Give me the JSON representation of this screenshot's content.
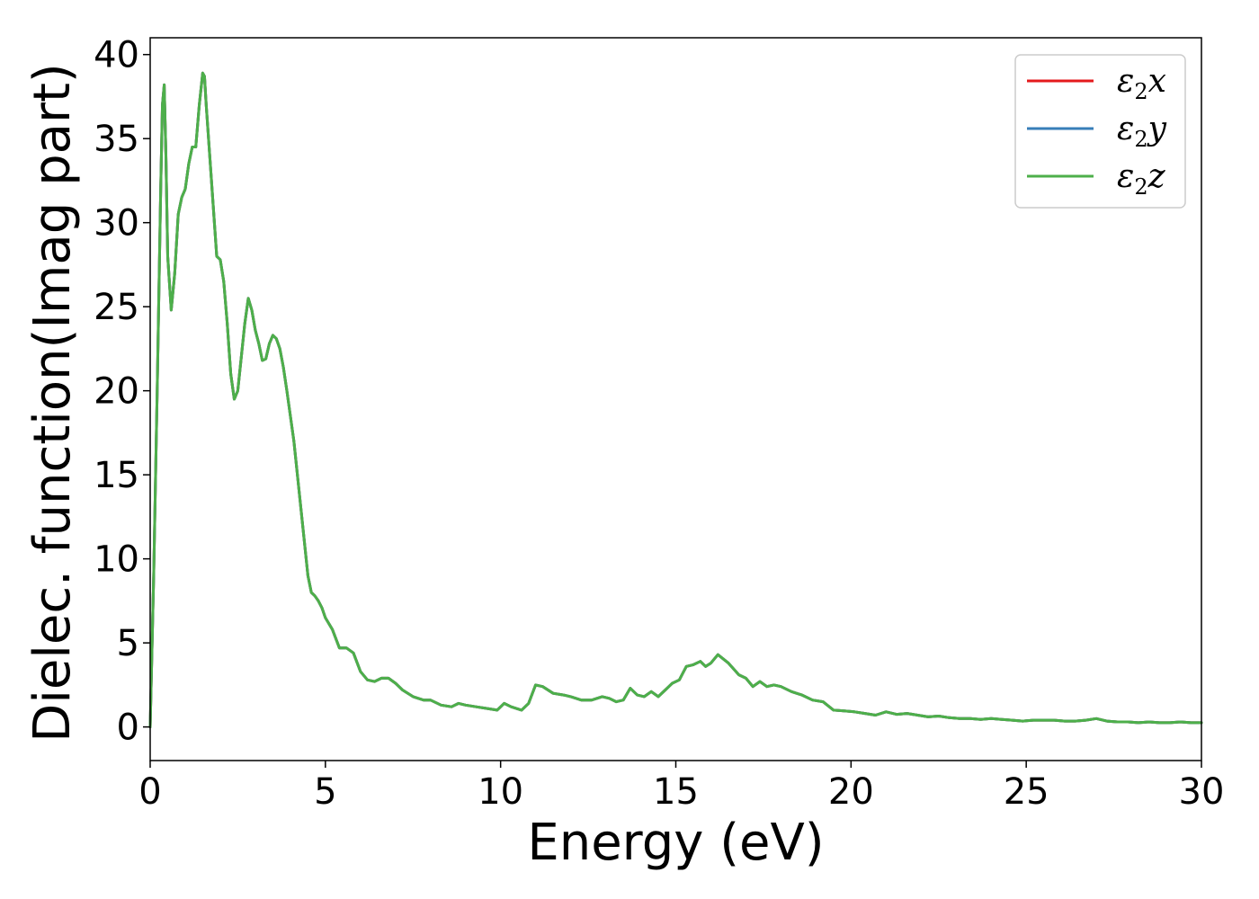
{
  "chart_data": {
    "type": "line",
    "xlabel": "Energy (eV)",
    "ylabel": "Dielec. function(Imag part)",
    "xlim": [
      0,
      30
    ],
    "ylim": [
      -2,
      41
    ],
    "x_ticks": [
      0,
      5,
      10,
      15,
      20,
      25,
      30
    ],
    "y_ticks": [
      0,
      5,
      10,
      15,
      20,
      25,
      30,
      35,
      40
    ],
    "grid": false,
    "legend_position": "top-right",
    "series": [
      {
        "name": "ε2x",
        "label_base": "ε",
        "label_sub": "2",
        "label_tail": "x",
        "color": "#e41a1c",
        "x": [
          0,
          0.1,
          0.2,
          0.3,
          0.35,
          0.4,
          0.45,
          0.5,
          0.6,
          0.7,
          0.8,
          0.9,
          1.0,
          1.1,
          1.2,
          1.3,
          1.4,
          1.5,
          1.55,
          1.6,
          1.7,
          1.8,
          1.9,
          2.0,
          2.1,
          2.2,
          2.3,
          2.4,
          2.5,
          2.6,
          2.7,
          2.8,
          2.9,
          3.0,
          3.1,
          3.2,
          3.3,
          3.4,
          3.5,
          3.6,
          3.7,
          3.8,
          3.9,
          4.0,
          4.1,
          4.2,
          4.3,
          4.4,
          4.5,
          4.6,
          4.7,
          4.8,
          4.9,
          5.0,
          5.2,
          5.4,
          5.6,
          5.8,
          6.0,
          6.2,
          6.4,
          6.6,
          6.8,
          7.0,
          7.2,
          7.5,
          7.8,
          8.0,
          8.3,
          8.6,
          8.8,
          9.0,
          9.3,
          9.6,
          9.9,
          10.1,
          10.3,
          10.6,
          10.8,
          11.0,
          11.2,
          11.5,
          11.8,
          12.0,
          12.3,
          12.6,
          12.9,
          13.1,
          13.3,
          13.5,
          13.7,
          13.9,
          14.1,
          14.3,
          14.5,
          14.7,
          14.9,
          15.1,
          15.3,
          15.5,
          15.7,
          15.85,
          16.0,
          16.2,
          16.5,
          16.8,
          17.0,
          17.2,
          17.4,
          17.6,
          17.8,
          18.0,
          18.3,
          18.6,
          18.9,
          19.2,
          19.5,
          19.8,
          20.1,
          20.4,
          20.7,
          21.0,
          21.3,
          21.6,
          21.9,
          22.2,
          22.5,
          22.8,
          23.1,
          23.4,
          23.7,
          24.0,
          24.3,
          24.6,
          24.9,
          25.2,
          25.5,
          25.8,
          26.1,
          26.4,
          26.7,
          27.0,
          27.3,
          27.6,
          27.9,
          28.2,
          28.5,
          28.8,
          29.1,
          29.4,
          29.7,
          30.0
        ],
        "y": [
          0,
          9,
          20,
          32,
          37,
          38.2,
          34,
          28,
          24.8,
          27,
          30.5,
          31.5,
          32,
          33.5,
          34.5,
          34.5,
          37,
          38.9,
          38.7,
          37,
          34,
          31,
          28,
          27.8,
          26.5,
          24,
          21,
          19.5,
          20,
          22,
          24,
          25.5,
          24.8,
          23.6,
          22.8,
          21.8,
          21.9,
          22.8,
          23.3,
          23.1,
          22.5,
          21.4,
          20,
          18.5,
          17,
          15,
          13,
          11,
          9,
          8,
          7.8,
          7.5,
          7.1,
          6.5,
          5.8,
          4.7,
          4.7,
          4.4,
          3.3,
          2.8,
          2.7,
          2.9,
          2.9,
          2.6,
          2.2,
          1.8,
          1.6,
          1.6,
          1.3,
          1.2,
          1.4,
          1.3,
          1.2,
          1.1,
          1.0,
          1.4,
          1.2,
          1.0,
          1.4,
          2.5,
          2.4,
          2.0,
          1.9,
          1.8,
          1.6,
          1.6,
          1.8,
          1.7,
          1.5,
          1.6,
          2.3,
          1.9,
          1.8,
          2.1,
          1.8,
          2.2,
          2.6,
          2.8,
          3.6,
          3.7,
          3.9,
          3.6,
          3.8,
          4.3,
          3.8,
          3.1,
          2.9,
          2.4,
          2.7,
          2.4,
          2.5,
          2.4,
          2.1,
          1.9,
          1.6,
          1.5,
          1.0,
          0.95,
          0.9,
          0.8,
          0.7,
          0.9,
          0.75,
          0.8,
          0.7,
          0.6,
          0.65,
          0.55,
          0.5,
          0.5,
          0.45,
          0.5,
          0.45,
          0.4,
          0.35,
          0.4,
          0.4,
          0.4,
          0.35,
          0.35,
          0.4,
          0.5,
          0.35,
          0.3,
          0.3,
          0.25,
          0.3,
          0.25,
          0.25,
          0.3,
          0.25,
          0.25
        ]
      },
      {
        "name": "ε2y",
        "label_base": "ε",
        "label_sub": "2",
        "label_tail": "y",
        "color": "#377eb8",
        "x": [
          0,
          0.1,
          0.2,
          0.3,
          0.35,
          0.4,
          0.45,
          0.5,
          0.6,
          0.7,
          0.8,
          0.9,
          1.0,
          1.1,
          1.2,
          1.3,
          1.4,
          1.5,
          1.55,
          1.6,
          1.7,
          1.8,
          1.9,
          2.0,
          2.1,
          2.2,
          2.3,
          2.4,
          2.5,
          2.6,
          2.7,
          2.8,
          2.9,
          3.0,
          3.1,
          3.2,
          3.3,
          3.4,
          3.5,
          3.6,
          3.7,
          3.8,
          3.9,
          4.0,
          4.1,
          4.2,
          4.3,
          4.4,
          4.5,
          4.6,
          4.7,
          4.8,
          4.9,
          5.0,
          5.2,
          5.4,
          5.6,
          5.8,
          6.0,
          6.2,
          6.4,
          6.6,
          6.8,
          7.0,
          7.2,
          7.5,
          7.8,
          8.0,
          8.3,
          8.6,
          8.8,
          9.0,
          9.3,
          9.6,
          9.9,
          10.1,
          10.3,
          10.6,
          10.8,
          11.0,
          11.2,
          11.5,
          11.8,
          12.0,
          12.3,
          12.6,
          12.9,
          13.1,
          13.3,
          13.5,
          13.7,
          13.9,
          14.1,
          14.3,
          14.5,
          14.7,
          14.9,
          15.1,
          15.3,
          15.5,
          15.7,
          15.85,
          16.0,
          16.2,
          16.5,
          16.8,
          17.0,
          17.2,
          17.4,
          17.6,
          17.8,
          18.0,
          18.3,
          18.6,
          18.9,
          19.2,
          19.5,
          19.8,
          20.1,
          20.4,
          20.7,
          21.0,
          21.3,
          21.6,
          21.9,
          22.2,
          22.5,
          22.8,
          23.1,
          23.4,
          23.7,
          24.0,
          24.3,
          24.6,
          24.9,
          25.2,
          25.5,
          25.8,
          26.1,
          26.4,
          26.7,
          27.0,
          27.3,
          27.6,
          27.9,
          28.2,
          28.5,
          28.8,
          29.1,
          29.4,
          29.7,
          30.0
        ],
        "y": [
          0,
          9,
          20,
          32,
          37,
          38.2,
          34,
          28,
          24.8,
          27,
          30.5,
          31.5,
          32,
          33.5,
          34.5,
          34.5,
          37,
          38.9,
          38.7,
          37,
          34,
          31,
          28,
          27.8,
          26.5,
          24,
          21,
          19.5,
          20,
          22,
          24,
          25.5,
          24.8,
          23.6,
          22.8,
          21.8,
          21.9,
          22.8,
          23.3,
          23.1,
          22.5,
          21.4,
          20,
          18.5,
          17,
          15,
          13,
          11,
          9,
          8,
          7.8,
          7.5,
          7.1,
          6.5,
          5.8,
          4.7,
          4.7,
          4.4,
          3.3,
          2.8,
          2.7,
          2.9,
          2.9,
          2.6,
          2.2,
          1.8,
          1.6,
          1.6,
          1.3,
          1.2,
          1.4,
          1.3,
          1.2,
          1.1,
          1.0,
          1.4,
          1.2,
          1.0,
          1.4,
          2.5,
          2.4,
          2.0,
          1.9,
          1.8,
          1.6,
          1.6,
          1.8,
          1.7,
          1.5,
          1.6,
          2.3,
          1.9,
          1.8,
          2.1,
          1.8,
          2.2,
          2.6,
          2.8,
          3.6,
          3.7,
          3.9,
          3.6,
          3.8,
          4.3,
          3.8,
          3.1,
          2.9,
          2.4,
          2.7,
          2.4,
          2.5,
          2.4,
          2.1,
          1.9,
          1.6,
          1.5,
          1.0,
          0.95,
          0.9,
          0.8,
          0.7,
          0.9,
          0.75,
          0.8,
          0.7,
          0.6,
          0.65,
          0.55,
          0.5,
          0.5,
          0.45,
          0.5,
          0.45,
          0.4,
          0.35,
          0.4,
          0.4,
          0.4,
          0.35,
          0.35,
          0.4,
          0.5,
          0.35,
          0.3,
          0.3,
          0.25,
          0.3,
          0.25,
          0.25,
          0.3,
          0.25,
          0.25
        ]
      },
      {
        "name": "ε2z",
        "label_base": "ε",
        "label_sub": "2",
        "label_tail": "z",
        "color": "#4daf4a",
        "x": [
          0,
          0.1,
          0.2,
          0.3,
          0.35,
          0.4,
          0.45,
          0.5,
          0.6,
          0.7,
          0.8,
          0.9,
          1.0,
          1.1,
          1.2,
          1.3,
          1.4,
          1.5,
          1.55,
          1.6,
          1.7,
          1.8,
          1.9,
          2.0,
          2.1,
          2.2,
          2.3,
          2.4,
          2.5,
          2.6,
          2.7,
          2.8,
          2.9,
          3.0,
          3.1,
          3.2,
          3.3,
          3.4,
          3.5,
          3.6,
          3.7,
          3.8,
          3.9,
          4.0,
          4.1,
          4.2,
          4.3,
          4.4,
          4.5,
          4.6,
          4.7,
          4.8,
          4.9,
          5.0,
          5.2,
          5.4,
          5.6,
          5.8,
          6.0,
          6.2,
          6.4,
          6.6,
          6.8,
          7.0,
          7.2,
          7.5,
          7.8,
          8.0,
          8.3,
          8.6,
          8.8,
          9.0,
          9.3,
          9.6,
          9.9,
          10.1,
          10.3,
          10.6,
          10.8,
          11.0,
          11.2,
          11.5,
          11.8,
          12.0,
          12.3,
          12.6,
          12.9,
          13.1,
          13.3,
          13.5,
          13.7,
          13.9,
          14.1,
          14.3,
          14.5,
          14.7,
          14.9,
          15.1,
          15.3,
          15.5,
          15.7,
          15.85,
          16.0,
          16.2,
          16.5,
          16.8,
          17.0,
          17.2,
          17.4,
          17.6,
          17.8,
          18.0,
          18.3,
          18.6,
          18.9,
          19.2,
          19.5,
          19.8,
          20.1,
          20.4,
          20.7,
          21.0,
          21.3,
          21.6,
          21.9,
          22.2,
          22.5,
          22.8,
          23.1,
          23.4,
          23.7,
          24.0,
          24.3,
          24.6,
          24.9,
          25.2,
          25.5,
          25.8,
          26.1,
          26.4,
          26.7,
          27.0,
          27.3,
          27.6,
          27.9,
          28.2,
          28.5,
          28.8,
          29.1,
          29.4,
          29.7,
          30.0
        ],
        "y": [
          0,
          9,
          20,
          32,
          37,
          38.2,
          34,
          28,
          24.8,
          27,
          30.5,
          31.5,
          32,
          33.5,
          34.5,
          34.5,
          37,
          38.9,
          38.7,
          37,
          34,
          31,
          28,
          27.8,
          26.5,
          24,
          21,
          19.5,
          20,
          22,
          24,
          25.5,
          24.8,
          23.6,
          22.8,
          21.8,
          21.9,
          22.8,
          23.3,
          23.1,
          22.5,
          21.4,
          20,
          18.5,
          17,
          15,
          13,
          11,
          9,
          8,
          7.8,
          7.5,
          7.1,
          6.5,
          5.8,
          4.7,
          4.7,
          4.4,
          3.3,
          2.8,
          2.7,
          2.9,
          2.9,
          2.6,
          2.2,
          1.8,
          1.6,
          1.6,
          1.3,
          1.2,
          1.4,
          1.3,
          1.2,
          1.1,
          1.0,
          1.4,
          1.2,
          1.0,
          1.4,
          2.5,
          2.4,
          2.0,
          1.9,
          1.8,
          1.6,
          1.6,
          1.8,
          1.7,
          1.5,
          1.6,
          2.3,
          1.9,
          1.8,
          2.1,
          1.8,
          2.2,
          2.6,
          2.8,
          3.6,
          3.7,
          3.9,
          3.6,
          3.8,
          4.3,
          3.8,
          3.1,
          2.9,
          2.4,
          2.7,
          2.4,
          2.5,
          2.4,
          2.1,
          1.9,
          1.6,
          1.5,
          1.0,
          0.95,
          0.9,
          0.8,
          0.7,
          0.9,
          0.75,
          0.8,
          0.7,
          0.6,
          0.65,
          0.55,
          0.5,
          0.5,
          0.45,
          0.5,
          0.45,
          0.4,
          0.35,
          0.4,
          0.4,
          0.4,
          0.35,
          0.35,
          0.4,
          0.5,
          0.35,
          0.3,
          0.3,
          0.25,
          0.3,
          0.25,
          0.25,
          0.3,
          0.25,
          0.25
        ]
      }
    ]
  }
}
